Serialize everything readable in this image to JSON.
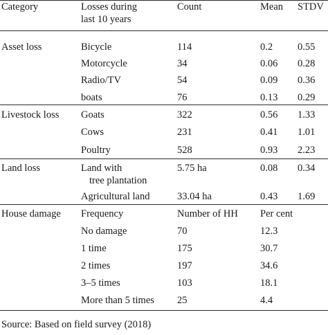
{
  "table": {
    "headers": {
      "category": "Category",
      "losses_line1": "Losses during",
      "losses_line2": "last 10 years",
      "count": "Count",
      "mean": "Mean",
      "stdv": "STDV"
    },
    "sections": [
      {
        "category": "Asset loss",
        "rows": [
          {
            "item": "Bicycle",
            "count": "114",
            "mean": "0.2",
            "stdv": "0.55"
          },
          {
            "item": "Motorcycle",
            "count": "34",
            "mean": "0.06",
            "stdv": "0.28"
          },
          {
            "item": "Radio/TV",
            "count": "54",
            "mean": "0.09",
            "stdv": "0.36"
          },
          {
            "item": "boats",
            "count": "76",
            "mean": "0.13",
            "stdv": "0.29"
          }
        ]
      },
      {
        "category": "Livestock loss",
        "rows": [
          {
            "item": "Goats",
            "count": "322",
            "mean": "0.56",
            "stdv": "1.33"
          },
          {
            "item": "Cows",
            "count": "231",
            "mean": "0.41",
            "stdv": "1.01"
          },
          {
            "item": "Poultry",
            "count": "528",
            "mean": "0.93",
            "stdv": "2.23"
          }
        ]
      },
      {
        "category": "Land loss",
        "rows": [
          {
            "item": "Land with",
            "item_line2": "tree plantation",
            "count": "5.75 ha",
            "mean": "0.08",
            "stdv": "0.34"
          },
          {
            "item": "Agricultural land",
            "count": "33.04 ha",
            "mean": "0.43",
            "stdv": "1.69"
          }
        ]
      },
      {
        "category": "House damage",
        "subheader": {
          "item": "Frequency",
          "count": "Number of HH",
          "mean": "Per cent"
        },
        "rows": [
          {
            "item": "No damage",
            "count": "70",
            "mean": "12.3"
          },
          {
            "item": "1 time",
            "count": "175",
            "mean": "30.7"
          },
          {
            "item": "2 times",
            "count": "197",
            "mean": "34.6"
          },
          {
            "item": "3–5 times",
            "count": "103",
            "mean": "18.1"
          },
          {
            "item": "More than 5 times",
            "count": "25",
            "mean": "4.4"
          }
        ]
      }
    ]
  },
  "footnote": "Source: Based on field survey (2018)"
}
